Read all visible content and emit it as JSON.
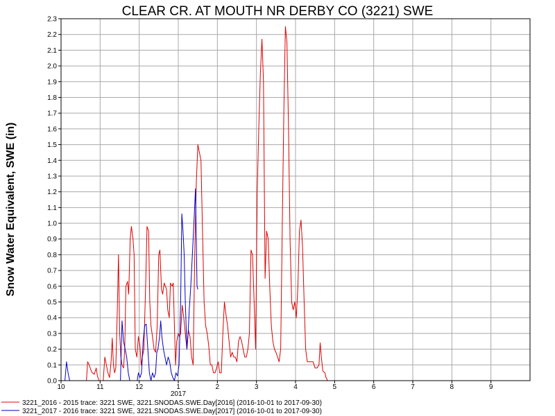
{
  "chart_data": {
    "type": "line",
    "title": "CLEAR CR. AT MOUTH NR DERBY CO (3221) SWE",
    "xlabel": "",
    "ylabel": "Snow Water Equivalent, SWE (in)",
    "ylim": [
      0.0,
      2.3
    ],
    "y_ticks": [
      "0.0",
      "0.1",
      "0.2",
      "0.3",
      "0.4",
      "0.5",
      "0.6",
      "0.7",
      "0.8",
      "0.9",
      "1.0",
      "1.1",
      "1.2",
      "1.3",
      "1.4",
      "1.5",
      "1.6",
      "1.7",
      "1.8",
      "1.9",
      "2.0",
      "2.1",
      "2.2",
      "2.3"
    ],
    "x_ticks": [
      "10",
      "11",
      "12",
      "1",
      "2",
      "3",
      "4",
      "5",
      "6",
      "7",
      "8",
      "9"
    ],
    "x_year_label": "2017",
    "grid": true,
    "legend_position": "bottom-left",
    "colors": {
      "s1": "#dd0000",
      "s2": "#0000cc"
    },
    "series": [
      {
        "name": "3221_2016 - 2015 trace: 3221 SWE, 3221.SNODAS.SWE.Day[2016] (2016-10-01 to 2017-09-30)",
        "color": "#dd0000",
        "points": [
          [
            10.65,
            0.0
          ],
          [
            10.68,
            0.12
          ],
          [
            10.72,
            0.1
          ],
          [
            10.76,
            0.07
          ],
          [
            10.8,
            0.05
          ],
          [
            10.85,
            0.04
          ],
          [
            10.9,
            0.08
          ],
          [
            10.93,
            0.03
          ],
          [
            10.97,
            0.0
          ],
          [
            11.08,
            0.0
          ],
          [
            11.12,
            0.15
          ],
          [
            11.16,
            0.1
          ],
          [
            11.2,
            0.05
          ],
          [
            11.24,
            0.02
          ],
          [
            11.28,
            0.12
          ],
          [
            11.31,
            0.27
          ],
          [
            11.34,
            0.1
          ],
          [
            11.37,
            0.05
          ],
          [
            11.4,
            0.08
          ],
          [
            11.44,
            0.45
          ],
          [
            11.47,
            0.8
          ],
          [
            11.5,
            0.3
          ],
          [
            11.53,
            0.15
          ],
          [
            11.56,
            0.1
          ],
          [
            11.6,
            0.08
          ],
          [
            11.63,
            0.2
          ],
          [
            11.66,
            0.6
          ],
          [
            11.7,
            0.63
          ],
          [
            11.73,
            0.55
          ],
          [
            11.77,
            0.9
          ],
          [
            11.8,
            0.98
          ],
          [
            11.84,
            0.9
          ],
          [
            11.87,
            0.8
          ],
          [
            11.9,
            0.2
          ],
          [
            11.94,
            0.15
          ],
          [
            11.98,
            0.28
          ],
          [
            12.02,
            0.22
          ],
          [
            12.05,
            0.1
          ],
          [
            12.08,
            0.15
          ],
          [
            12.12,
            0.2
          ],
          [
            12.17,
            0.65
          ],
          [
            12.2,
            0.98
          ],
          [
            12.24,
            0.95
          ],
          [
            12.27,
            0.5
          ],
          [
            12.3,
            0.35
          ],
          [
            12.34,
            0.28
          ],
          [
            12.38,
            0.2
          ],
          [
            12.42,
            0.18
          ],
          [
            12.46,
            0.35
          ],
          [
            12.5,
            0.8
          ],
          [
            12.53,
            0.83
          ],
          [
            12.57,
            0.58
          ],
          [
            12.6,
            0.55
          ],
          [
            12.64,
            0.62
          ],
          [
            12.67,
            0.6
          ],
          [
            12.7,
            0.58
          ],
          [
            12.73,
            0.45
          ],
          [
            12.77,
            0.4
          ],
          [
            12.8,
            0.62
          ],
          [
            12.84,
            0.6
          ],
          [
            12.87,
            0.62
          ],
          [
            12.9,
            0.35
          ],
          [
            12.93,
            0.1
          ],
          [
            12.96,
            0.25
          ],
          [
            13.0,
            0.3
          ],
          [
            13.03,
            0.28
          ],
          [
            13.06,
            0.3
          ],
          [
            13.1,
            0.48
          ],
          [
            13.14,
            0.4
          ],
          [
            13.18,
            0.3
          ],
          [
            13.22,
            0.2
          ],
          [
            13.26,
            0.32
          ],
          [
            13.3,
            0.28
          ],
          [
            13.34,
            0.15
          ],
          [
            13.38,
            0.1
          ],
          [
            13.42,
            0.8
          ],
          [
            13.46,
            1.25
          ],
          [
            13.5,
            1.5
          ],
          [
            13.54,
            1.45
          ],
          [
            13.58,
            1.4
          ],
          [
            13.62,
            0.95
          ],
          [
            13.66,
            0.5
          ],
          [
            13.7,
            0.35
          ],
          [
            13.74,
            0.3
          ],
          [
            13.78,
            0.22
          ],
          [
            13.82,
            0.1
          ],
          [
            13.86,
            0.1
          ],
          [
            13.9,
            0.05
          ],
          [
            13.94,
            0.05
          ],
          [
            13.98,
            0.08
          ],
          [
            14.02,
            0.12
          ],
          [
            14.06,
            0.05
          ],
          [
            14.1,
            0.05
          ],
          [
            14.14,
            0.3
          ],
          [
            14.18,
            0.5
          ],
          [
            14.22,
            0.42
          ],
          [
            14.26,
            0.35
          ],
          [
            14.3,
            0.25
          ],
          [
            14.34,
            0.15
          ],
          [
            14.38,
            0.18
          ],
          [
            14.42,
            0.15
          ],
          [
            14.46,
            0.15
          ],
          [
            14.5,
            0.12
          ],
          [
            14.54,
            0.25
          ],
          [
            14.58,
            0.28
          ],
          [
            14.62,
            0.25
          ],
          [
            14.66,
            0.2
          ],
          [
            14.7,
            0.15
          ],
          [
            14.74,
            0.15
          ],
          [
            14.78,
            0.2
          ],
          [
            14.82,
            0.3
          ],
          [
            14.86,
            0.83
          ],
          [
            14.9,
            0.8
          ],
          [
            14.94,
            0.5
          ],
          [
            14.98,
            0.2
          ],
          [
            15.02,
            1.2
          ],
          [
            15.06,
            1.6
          ],
          [
            15.1,
            1.95
          ],
          [
            15.14,
            2.17
          ],
          [
            15.18,
            1.9
          ],
          [
            15.22,
            0.65
          ],
          [
            15.26,
            0.95
          ],
          [
            15.3,
            0.9
          ],
          [
            15.34,
            0.6
          ],
          [
            15.38,
            0.35
          ],
          [
            15.42,
            0.25
          ],
          [
            15.46,
            0.2
          ],
          [
            15.5,
            0.18
          ],
          [
            15.54,
            0.15
          ],
          [
            15.58,
            0.12
          ],
          [
            15.62,
            0.2
          ],
          [
            15.66,
            0.95
          ],
          [
            15.7,
            1.7
          ],
          [
            15.74,
            2.25
          ],
          [
            15.78,
            2.15
          ],
          [
            15.82,
            1.6
          ],
          [
            15.86,
            0.9
          ],
          [
            15.9,
            0.5
          ],
          [
            15.94,
            0.45
          ],
          [
            15.98,
            0.5
          ],
          [
            16.02,
            0.4
          ],
          [
            16.06,
            0.6
          ],
          [
            16.1,
            0.95
          ],
          [
            16.14,
            1.02
          ],
          [
            16.18,
            0.85
          ],
          [
            16.22,
            0.5
          ],
          [
            16.26,
            0.2
          ],
          [
            16.3,
            0.12
          ],
          [
            16.35,
            0.12
          ],
          [
            16.4,
            0.12
          ],
          [
            16.45,
            0.12
          ],
          [
            16.5,
            0.08
          ],
          [
            16.55,
            0.08
          ],
          [
            16.6,
            0.1
          ],
          [
            16.63,
            0.24
          ],
          [
            16.66,
            0.15
          ],
          [
            16.7,
            0.06
          ],
          [
            16.75,
            0.05
          ],
          [
            16.78,
            0.02
          ],
          [
            16.82,
            0.0
          ]
        ]
      },
      {
        "name": "3221_2017 - 2016 trace: 3221 SWE, 3221.SNODAS.SWE.Day[2017] (2016-10-01 to 2017-09-30)",
        "color": "#0000cc",
        "points": [
          [
            10.1,
            0.0
          ],
          [
            10.14,
            0.12
          ],
          [
            10.18,
            0.05
          ],
          [
            10.22,
            0.0
          ],
          [
            11.52,
            0.0
          ],
          [
            11.56,
            0.38
          ],
          [
            11.6,
            0.25
          ],
          [
            11.64,
            0.2
          ],
          [
            11.68,
            0.15
          ],
          [
            11.72,
            0.05
          ],
          [
            11.76,
            0.0
          ],
          [
            11.95,
            0.0
          ],
          [
            11.98,
            0.05
          ],
          [
            12.02,
            0.02
          ],
          [
            12.06,
            0.05
          ],
          [
            12.1,
            0.25
          ],
          [
            12.14,
            0.35
          ],
          [
            12.18,
            0.36
          ],
          [
            12.22,
            0.2
          ],
          [
            12.26,
            0.05
          ],
          [
            12.3,
            0.0
          ],
          [
            12.34,
            0.05
          ],
          [
            12.38,
            0.02
          ],
          [
            12.42,
            0.05
          ],
          [
            12.45,
            0.18
          ],
          [
            12.48,
            0.2
          ],
          [
            12.52,
            0.28
          ],
          [
            12.55,
            0.38
          ],
          [
            12.58,
            0.28
          ],
          [
            12.62,
            0.2
          ],
          [
            12.66,
            0.15
          ],
          [
            12.7,
            0.1
          ],
          [
            12.74,
            0.15
          ],
          [
            12.78,
            0.12
          ],
          [
            12.82,
            0.05
          ],
          [
            12.86,
            0.02
          ],
          [
            12.9,
            0.0
          ],
          [
            12.94,
            0.05
          ],
          [
            12.98,
            0.03
          ],
          [
            13.02,
            0.1
          ],
          [
            13.06,
            0.5
          ],
          [
            13.09,
            1.06
          ],
          [
            13.12,
            0.95
          ],
          [
            13.15,
            0.8
          ],
          [
            13.18,
            0.5
          ],
          [
            13.22,
            0.2
          ],
          [
            13.25,
            0.3
          ],
          [
            13.28,
            0.45
          ],
          [
            13.32,
            0.6
          ],
          [
            13.36,
            0.8
          ],
          [
            13.4,
            1.0
          ],
          [
            13.44,
            1.22
          ],
          [
            13.48,
            0.6
          ],
          [
            13.5,
            0.58
          ]
        ]
      }
    ]
  }
}
